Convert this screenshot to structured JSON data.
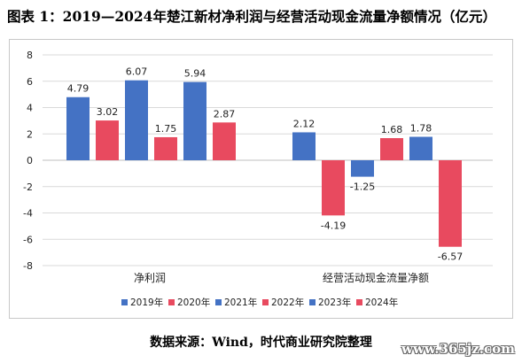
{
  "title": "图表 1：2019—2024年楚江新材净利润与经营活动现金流量净额情况（亿元）",
  "source": "数据来源：Wind，时代商业研究院整理",
  "watermark": "www.365jz.com",
  "chart_data": {
    "type": "bar",
    "categories": [
      "净利润",
      "经营活动现金流量净额"
    ],
    "ylim": [
      -8,
      8
    ],
    "yticks": [
      -8,
      -6,
      -4,
      -2,
      0,
      2,
      4,
      6,
      8
    ],
    "grid": true,
    "legend_position": "bottom",
    "series": [
      {
        "name": "2019年",
        "color": "#4472c4",
        "values": [
          4.79,
          2.12
        ]
      },
      {
        "name": "2020年",
        "color": "#e84a5f",
        "values": [
          3.02,
          -4.19
        ]
      },
      {
        "name": "2021年",
        "color": "#4472c4",
        "values": [
          6.07,
          -1.25
        ]
      },
      {
        "name": "2022年",
        "color": "#e84a5f",
        "values": [
          1.75,
          1.68
        ]
      },
      {
        "name": "2023年",
        "color": "#4472c4",
        "values": [
          5.94,
          1.78
        ]
      },
      {
        "name": "2024年",
        "color": "#e84a5f",
        "values": [
          2.87,
          -6.57
        ]
      }
    ]
  }
}
